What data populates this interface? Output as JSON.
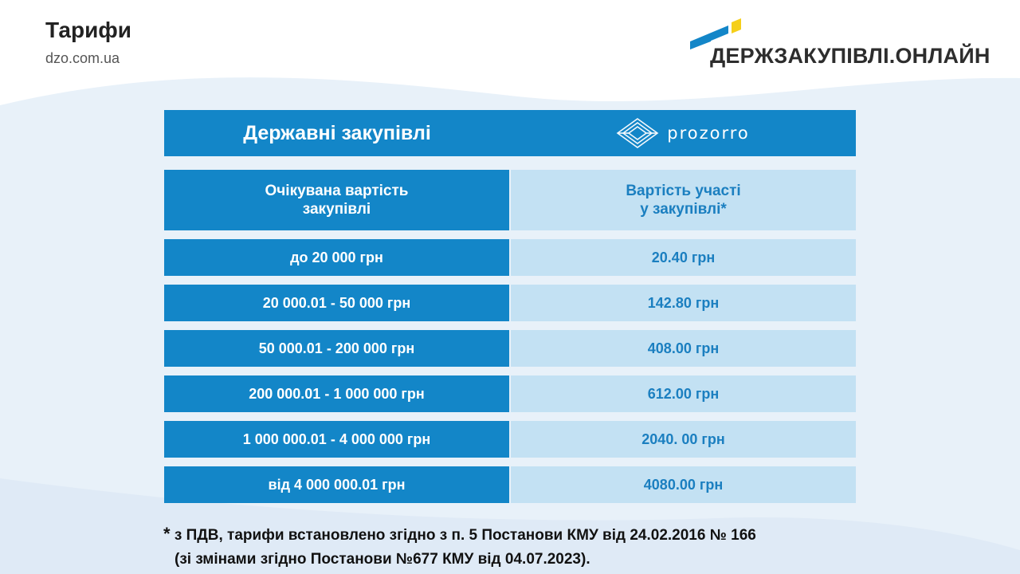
{
  "header": {
    "title": "Тарифи",
    "subtitle": "dzo.com.ua"
  },
  "brand": {
    "name": "ДЕРЖЗАКУПІВЛІ.ОНЛАЙН",
    "mark_colors": [
      "#1386c8",
      "#f5cf1a"
    ]
  },
  "table": {
    "header_title": "Державні закупівлі",
    "header_logo_text": "prozorro",
    "column_headers": [
      "Очікувана вартість\nзакупівлі",
      "Вартість участі\nу закупівлі*"
    ],
    "rows": [
      {
        "range": "до 20 000 грн",
        "price": "20.40 грн"
      },
      {
        "range": "20 000.01 - 50 000 грн",
        "price": "142.80 грн"
      },
      {
        "range": "50 000.01 - 200 000 грн",
        "price": "408.00 грн"
      },
      {
        "range": "200 000.01 - 1 000 000 грн",
        "price": "612.00 грн"
      },
      {
        "range": "1 000 000.01 - 4 000 000 грн",
        "price": "2040. 00 грн"
      },
      {
        "range": "від 4 000 000.01 грн",
        "price": "4080.00 грн"
      }
    ]
  },
  "footnote": {
    "star": "*",
    "line1": " з ПДВ, тарифи встановлено згідно з п. 5 Постанови КМУ від 24.02.2016 № 166",
    "line2": "(зі змінами згідно Постанови №677 КМУ від 04.07.2023)."
  },
  "colors": {
    "primary_blue": "#1386c8",
    "light_blue": "#c3e1f3",
    "price_text": "#1b7fc0",
    "background_wave": "#e8f1f9"
  }
}
